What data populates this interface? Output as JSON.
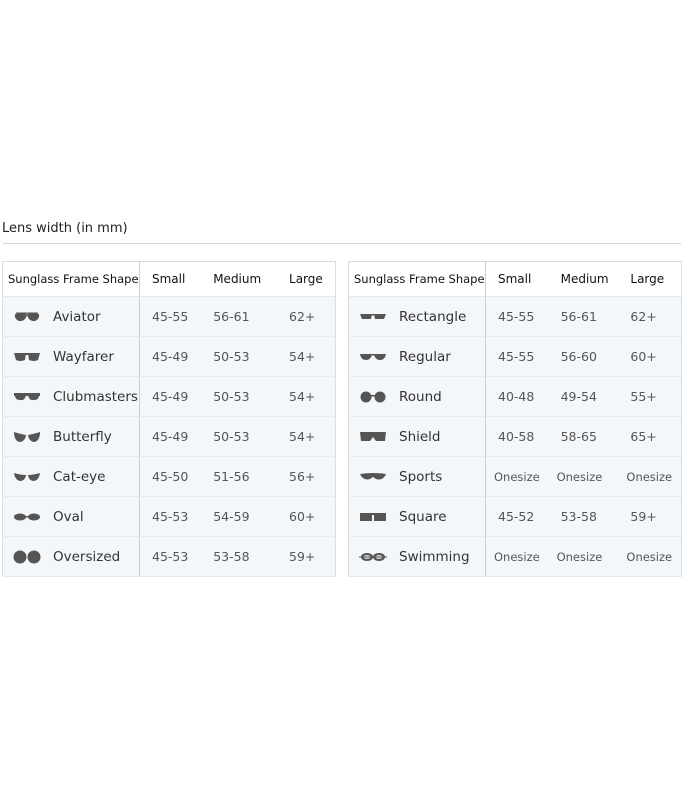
{
  "section_title": "Lens width (in mm)",
  "headers": [
    "Sunglass Frame Shape",
    "Small",
    "Medium",
    "Large"
  ],
  "tables": [
    {
      "rows": [
        {
          "shape": "Aviator",
          "icon": "aviator-glasses-icon",
          "small": "45-55",
          "medium": "56-61",
          "large": "62+"
        },
        {
          "shape": "Wayfarer",
          "icon": "wayfarer-glasses-icon",
          "small": "45-49",
          "medium": "50-53",
          "large": "54+"
        },
        {
          "shape": "Clubmasters",
          "icon": "clubmaster-glasses-icon",
          "small": "45-49",
          "medium": "50-53",
          "large": "54+"
        },
        {
          "shape": "Butterfly",
          "icon": "butterfly-glasses-icon",
          "small": "45-49",
          "medium": "50-53",
          "large": "54+"
        },
        {
          "shape": "Cat-eye",
          "icon": "cat-eye-glasses-icon",
          "small": "45-50",
          "medium": "51-56",
          "large": "56+"
        },
        {
          "shape": "Oval",
          "icon": "oval-glasses-icon",
          "small": "45-53",
          "medium": "54-59",
          "large": "60+"
        },
        {
          "shape": "Oversized",
          "icon": "oversized-glasses-icon",
          "small": "45-53",
          "medium": "53-58",
          "large": "59+"
        }
      ]
    },
    {
      "rows": [
        {
          "shape": "Rectangle",
          "icon": "rectangle-glasses-icon",
          "small": "45-55",
          "medium": "56-61",
          "large": "62+"
        },
        {
          "shape": "Regular",
          "icon": "regular-glasses-icon",
          "small": "45-55",
          "medium": "56-60",
          "large": "60+"
        },
        {
          "shape": "Round",
          "icon": "round-glasses-icon",
          "small": "40-48",
          "medium": "49-54",
          "large": "55+"
        },
        {
          "shape": "Shield",
          "icon": "shield-glasses-icon",
          "small": "40-58",
          "medium": "58-65",
          "large": "65+"
        },
        {
          "shape": "Sports",
          "icon": "sports-glasses-icon",
          "small": "Onesize",
          "medium": "Onesize",
          "large": "Onesize"
        },
        {
          "shape": "Square",
          "icon": "square-glasses-icon",
          "small": "45-52",
          "medium": "53-58",
          "large": "59+"
        },
        {
          "shape": "Swimming",
          "icon": "swimming-goggles-icon",
          "small": "Onesize",
          "medium": "Onesize",
          "large": "Onesize"
        }
      ]
    }
  ],
  "icon_color": "#555555"
}
